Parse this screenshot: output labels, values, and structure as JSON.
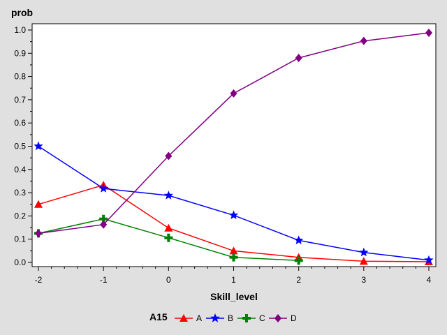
{
  "chart_data": {
    "type": "line",
    "title": "",
    "ylabel": "prob",
    "xlabel": "Skill_level",
    "xlim": [
      -2,
      4
    ],
    "ylim": [
      0,
      1
    ],
    "x_ticks": [
      "-2",
      "-1",
      "0",
      "1",
      "2",
      "3",
      "4"
    ],
    "y_ticks": [
      "0.0",
      "0.1",
      "0.2",
      "0.3",
      "0.4",
      "0.5",
      "0.6",
      "0.7",
      "0.8",
      "0.9",
      "1.0"
    ],
    "grid": false,
    "legend_title": "A15",
    "legend_position": "bottom",
    "series": [
      {
        "name": "A",
        "color": "#ff0000",
        "marker": "triangle",
        "x": [
          -2,
          -1,
          0,
          1,
          2,
          3,
          4
        ],
        "values": [
          0.25,
          0.333,
          0.148,
          0.05,
          0.022,
          0.005,
          0.003
        ]
      },
      {
        "name": "B",
        "color": "#0000ff",
        "marker": "star",
        "x": [
          -2,
          -1,
          0,
          1,
          2,
          3,
          4
        ],
        "values": [
          0.5,
          0.318,
          0.288,
          0.203,
          0.095,
          0.043,
          0.01
        ]
      },
      {
        "name": "C",
        "color": "#008000",
        "marker": "plus",
        "x": [
          -2,
          -1,
          0,
          1,
          2
        ],
        "values": [
          0.125,
          0.187,
          0.106,
          0.022,
          0.008
        ]
      },
      {
        "name": "D",
        "color": "#800080",
        "marker": "diamond",
        "x": [
          -2,
          -1,
          0,
          1,
          2,
          3,
          4
        ],
        "values": [
          0.125,
          0.163,
          0.458,
          0.727,
          0.88,
          0.953,
          0.988
        ]
      }
    ]
  }
}
